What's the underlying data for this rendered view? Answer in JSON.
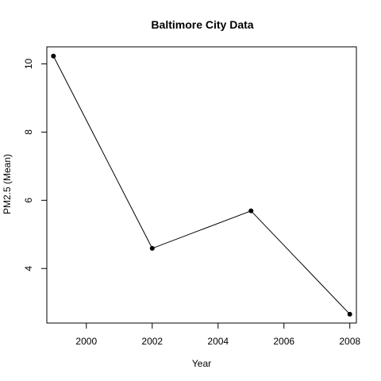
{
  "chart_data": {
    "type": "line",
    "title": "Baltimore City Data",
    "xlabel": "Year",
    "ylabel": "PM2.5 (Mean)",
    "x": [
      1999,
      2002,
      2005,
      2008
    ],
    "series": [
      {
        "values": [
          10.23,
          4.59,
          5.69,
          2.66
        ]
      }
    ],
    "xlim": [
      1998.8,
      2008.2
    ],
    "ylim": [
      2.4,
      10.5
    ],
    "x_ticks": [
      2000,
      2002,
      2004,
      2006,
      2008
    ],
    "x_tick_labels": [
      "2000",
      "2002",
      "2004",
      "2006",
      "2008"
    ],
    "y_ticks": [
      4,
      6,
      8,
      10
    ],
    "y_tick_labels": [
      "4",
      "6",
      "8",
      "10"
    ],
    "grid": false,
    "legend": "none",
    "line_color": "#000000",
    "marker": "filled-circle"
  }
}
